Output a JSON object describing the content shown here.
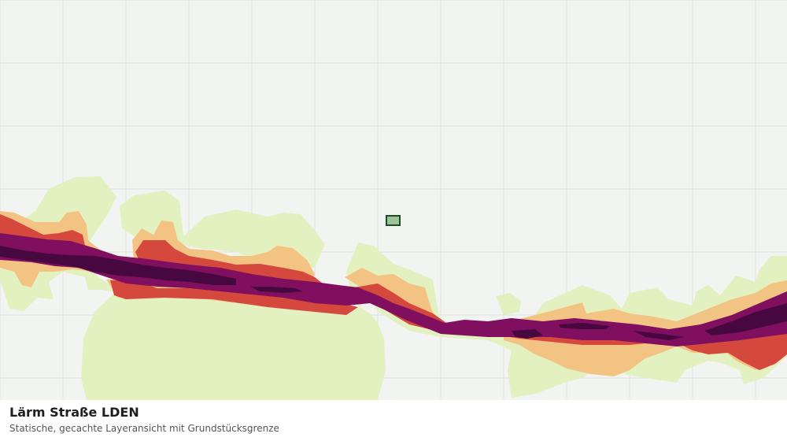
{
  "map": {
    "layer": "noise-road-lden",
    "colors": {
      "background": "#f2f4f2",
      "grid": "#dfe2df",
      "band_1": "#e3f0c0",
      "band_2": "#f3c383",
      "band_3": "#d4483e",
      "band_4": "#80105f",
      "band_5": "#47083f",
      "parcel_fill": "#9cc39a",
      "parcel_stroke": "#1c4a22"
    }
  },
  "caption": {
    "title": "Lärm Straße LDEN",
    "subtitle": "Statische, gecachte Layeransicht mit Grundstücksgrenze"
  }
}
